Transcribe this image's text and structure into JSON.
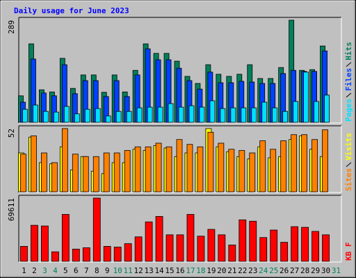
{
  "chart_data": [
    {
      "type": "bar",
      "title": "Daily usage for June 2023",
      "categories": [
        "1",
        "2",
        "3",
        "4",
        "5",
        "6",
        "7",
        "8",
        "9",
        "10",
        "11",
        "12",
        "13",
        "14",
        "15",
        "16",
        "17",
        "18",
        "19",
        "20",
        "21",
        "22",
        "23",
        "24",
        "25",
        "26",
        "27",
        "28",
        "29",
        "30",
        "31"
      ],
      "category_colors": [
        "#000000",
        "#000000",
        "#00805c",
        "#00805c",
        "#000000",
        "#000000",
        "#000000",
        "#000000",
        "#000000",
        "#00805c",
        "#00805c",
        "#000000",
        "#000000",
        "#000000",
        "#000000",
        "#000000",
        "#00805c",
        "#00805c",
        "#000000",
        "#000000",
        "#000000",
        "#000000",
        "#000000",
        "#00805c",
        "#00805c",
        "#000000",
        "#000000",
        "#000000",
        "#000000",
        "#000000",
        "#00805c"
      ],
      "ylim": [
        0,
        289
      ],
      "yticks": [
        289
      ],
      "series": [
        {
          "name": "Hits",
          "color": "#00805c",
          "values": [
            75,
            222,
            92,
            86,
            181,
            96,
            134,
            134,
            85,
            134,
            86,
            147,
            222,
            195,
            195,
            173,
            130,
            110,
            163,
            136,
            130,
            136,
            163,
            124,
            124,
            155,
            289,
            147,
            149,
            216,
            null
          ]
        },
        {
          "name": "Files",
          "color": "#0040ff",
          "values": [
            57,
            179,
            83,
            75,
            163,
            81,
            118,
            118,
            73,
            118,
            73,
            134,
            208,
            177,
            177,
            153,
            118,
            94,
            142,
            112,
            112,
            116,
            114,
            110,
            110,
            138,
            147,
            144,
            144,
            202,
            null
          ]
        },
        {
          "name": "Pages",
          "color": "#00e0ff",
          "values": [
            37,
            49,
            31,
            29,
            45,
            24,
            37,
            39,
            18,
            31,
            31,
            41,
            43,
            43,
            53,
            43,
            47,
            43,
            61,
            39,
            41,
            41,
            41,
            57,
            41,
            31,
            59,
            142,
            59,
            77,
            null
          ]
        }
      ]
    },
    {
      "type": "bar",
      "ylim": [
        0,
        52
      ],
      "yticks": [
        52
      ],
      "series": [
        {
          "name": "Visits",
          "color": "#ffff00",
          "values": [
            32,
            45,
            24,
            23,
            37,
            18,
            29,
            17,
            15,
            24,
            24,
            35,
            34,
            38,
            36,
            29,
            32,
            32,
            52,
            37,
            33,
            29,
            27,
            37,
            28,
            29,
            43,
            46,
            35,
            29,
            null
          ]
        },
        {
          "name": "Sites",
          "color": "#ff8000",
          "values": [
            31,
            46,
            32,
            24,
            52,
            31,
            29,
            29,
            32,
            32,
            34,
            37,
            37,
            40,
            37,
            43,
            39,
            37,
            49,
            40,
            35,
            34,
            32,
            42,
            35,
            42,
            47,
            47,
            43,
            51,
            null
          ]
        }
      ]
    },
    {
      "type": "bar",
      "ylim": [
        0,
        69611
      ],
      "yticks": [
        69611
      ],
      "series": [
        {
          "name": "KB F",
          "color": "#ff0000",
          "values": [
            16467,
            39670,
            38922,
            10479,
            51647,
            13473,
            14970,
            69611,
            16467,
            15719,
            19461,
            26946,
            43413,
            49401,
            29192,
            29192,
            51647,
            27695,
            35180,
            29192,
            17964,
            45659,
            44162,
            26198,
            34431,
            20958,
            38174,
            37426,
            32934,
            29192,
            null
          ]
        }
      ]
    }
  ]
}
